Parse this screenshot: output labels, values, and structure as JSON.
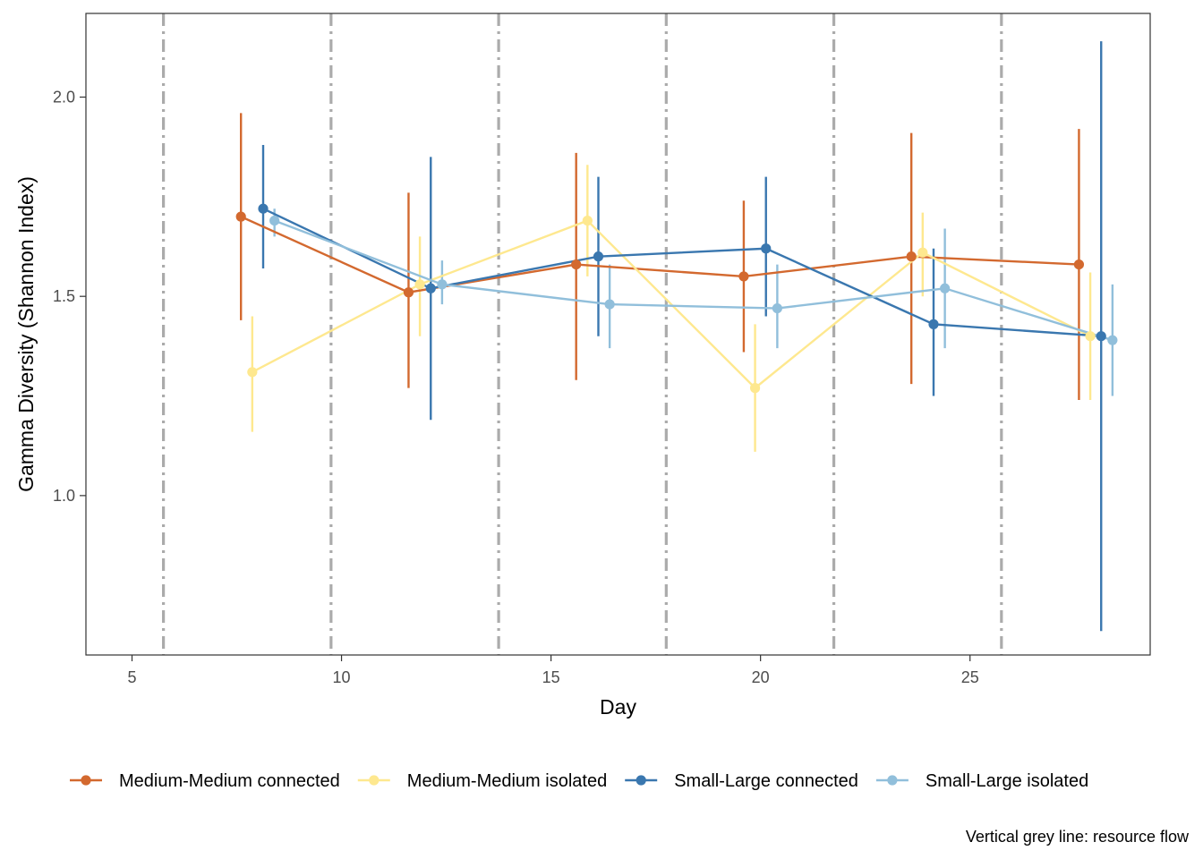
{
  "chart_data": {
    "type": "line",
    "xlabel": "Day",
    "ylabel": "Gamma Diversity (Shannon Index)",
    "xlim": [
      3.9,
      29.3
    ],
    "ylim": [
      0.6,
      2.21
    ],
    "x_ticks": [
      5,
      10,
      15,
      20,
      25
    ],
    "y_ticks": [
      1.0,
      1.5,
      2.0
    ],
    "x_tick_labels": [
      "5",
      "10",
      "15",
      "20",
      "25"
    ],
    "y_tick_labels": [
      "1.0",
      "1.5",
      "2.0"
    ],
    "grid": false,
    "legend_position": "bottom",
    "caption": "Vertical grey line: resource flow",
    "vlines": [
      5.75,
      9.75,
      13.75,
      17.75,
      21.75,
      25.75
    ],
    "vline_color": "#ababab",
    "series": [
      {
        "name": "Medium-Medium connected",
        "color": "#d3692f",
        "x": [
          7.6,
          11.6,
          15.6,
          19.6,
          23.6,
          27.6
        ],
        "y": [
          1.7,
          1.51,
          1.58,
          1.55,
          1.6,
          1.58
        ],
        "lower": [
          1.44,
          1.27,
          1.29,
          1.36,
          1.28,
          1.24
        ],
        "upper": [
          1.96,
          1.76,
          1.86,
          1.74,
          1.91,
          1.92
        ]
      },
      {
        "name": "Medium-Medium isolated",
        "color": "#fee88f",
        "x": [
          7.87,
          11.87,
          15.87,
          19.87,
          23.87,
          27.87
        ],
        "y": [
          1.31,
          1.53,
          1.69,
          1.27,
          1.61,
          1.4
        ],
        "lower": [
          1.16,
          1.4,
          1.55,
          1.11,
          1.5,
          1.24
        ],
        "upper": [
          1.45,
          1.65,
          1.83,
          1.43,
          1.71,
          1.56
        ]
      },
      {
        "name": "Small-Large connected",
        "color": "#3a77af",
        "x": [
          8.13,
          12.13,
          16.13,
          20.13,
          24.13,
          28.13
        ],
        "y": [
          1.72,
          1.52,
          1.6,
          1.62,
          1.43,
          1.4
        ],
        "lower": [
          1.57,
          1.19,
          1.4,
          1.45,
          1.25,
          0.66
        ],
        "upper": [
          1.88,
          1.85,
          1.8,
          1.8,
          1.62,
          2.14
        ]
      },
      {
        "name": "Small-Large isolated",
        "color": "#91bfdb",
        "x": [
          8.4,
          12.4,
          16.4,
          20.4,
          24.4,
          28.4
        ],
        "y": [
          1.69,
          1.53,
          1.48,
          1.47,
          1.52,
          1.39
        ],
        "lower": [
          1.65,
          1.48,
          1.37,
          1.37,
          1.37,
          1.25
        ],
        "upper": [
          1.72,
          1.59,
          1.58,
          1.58,
          1.67,
          1.53
        ]
      }
    ]
  }
}
